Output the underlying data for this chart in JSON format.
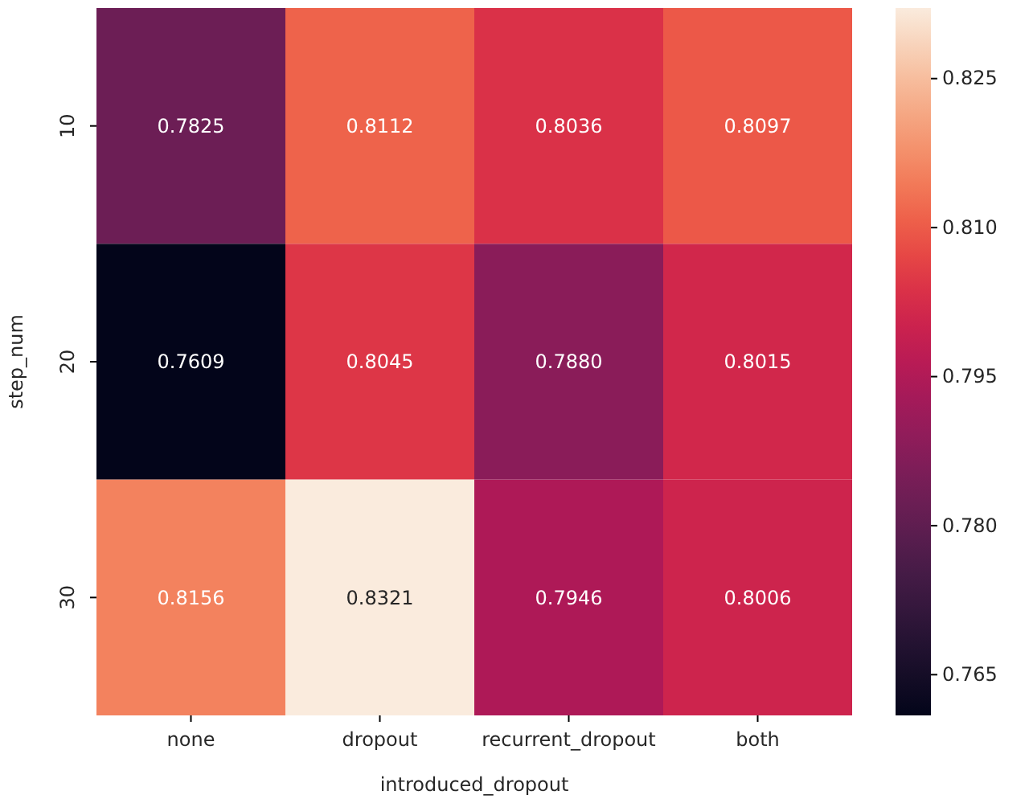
{
  "chart_data": {
    "type": "heatmap",
    "xlabel": "introduced_dropout",
    "ylabel": "step_num",
    "categories": [
      "none",
      "dropout",
      "recurrent_dropout",
      "both"
    ],
    "y_categories": [
      "10",
      "20",
      "30"
    ],
    "cells": [
      [
        0.7825,
        0.8112,
        0.8036,
        0.8097
      ],
      [
        0.7609,
        0.8045,
        0.788,
        0.8015
      ],
      [
        0.8156,
        0.8321,
        0.7946,
        0.8006
      ]
    ],
    "cell_labels": [
      [
        "0.7825",
        "0.8112",
        "0.8036",
        "0.8097"
      ],
      [
        "0.7609",
        "0.8045",
        "0.7880",
        "0.8015"
      ],
      [
        "0.8156",
        "0.8321",
        "0.7946",
        "0.8006"
      ]
    ],
    "clim": [
      0.7609,
      0.8321
    ],
    "cticks": [
      0.765,
      {
        "value": 0.78,
        "label": "0.780"
      },
      0.795,
      {
        "value": 0.81,
        "label": "0.810"
      },
      0.825
    ]
  }
}
